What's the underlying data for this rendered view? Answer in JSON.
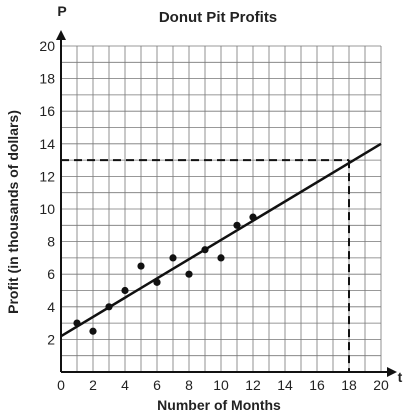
{
  "chart_data": {
    "type": "scatter",
    "title": "Donut Pit Profits",
    "xlabel": "Number of Months",
    "ylabel": "Profit (in thousands of dollars)",
    "x_axis_letter": "t",
    "y_axis_letter": "P",
    "xlim": [
      0,
      20
    ],
    "ylim": [
      0,
      20
    ],
    "x_ticks": [
      0,
      2,
      4,
      6,
      8,
      10,
      12,
      14,
      16,
      18,
      20
    ],
    "y_ticks": [
      2,
      4,
      6,
      8,
      10,
      12,
      14,
      16,
      18,
      20
    ],
    "grid": true,
    "points": [
      {
        "x": 1,
        "y": 3
      },
      {
        "x": 2,
        "y": 2.5
      },
      {
        "x": 3,
        "y": 4
      },
      {
        "x": 4,
        "y": 5
      },
      {
        "x": 5,
        "y": 6.5
      },
      {
        "x": 6,
        "y": 5.5
      },
      {
        "x": 7,
        "y": 7
      },
      {
        "x": 8,
        "y": 6
      },
      {
        "x": 9,
        "y": 7.5
      },
      {
        "x": 10,
        "y": 7
      },
      {
        "x": 11,
        "y": 9
      },
      {
        "x": 12,
        "y": 9.5
      }
    ],
    "trend_line": {
      "x1": 0,
      "y1": 2.2,
      "x2": 20,
      "y2": 14
    },
    "reference_point": {
      "x": 18,
      "y": 13
    }
  }
}
